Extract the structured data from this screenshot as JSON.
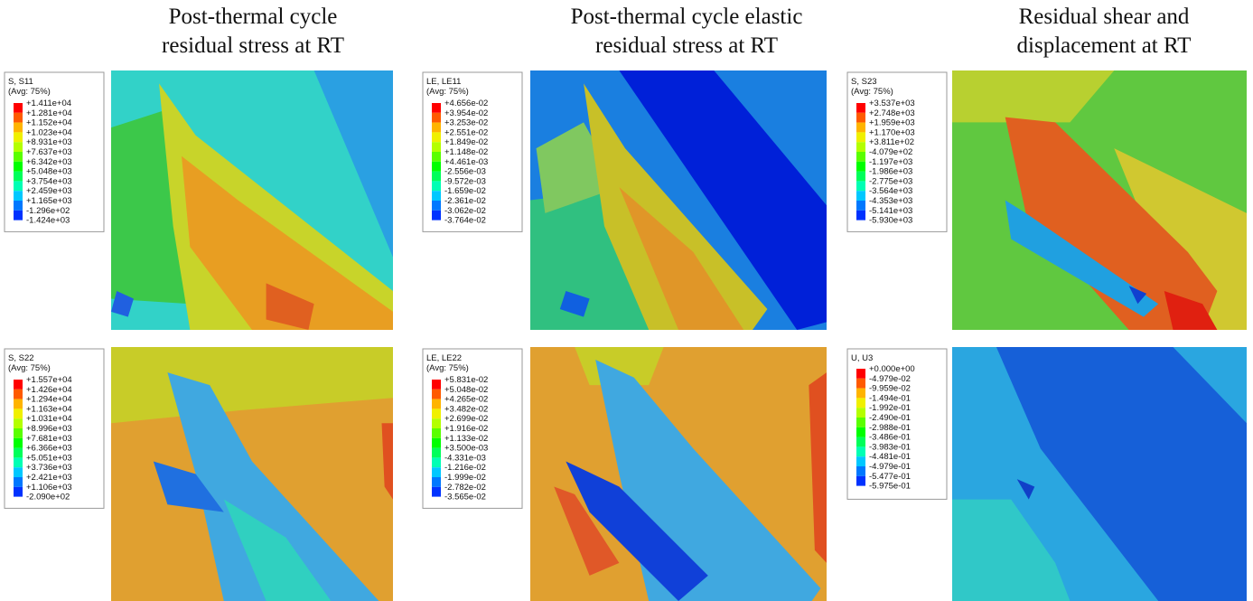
{
  "columns": [
    {
      "title": [
        "Post-thermal cycle",
        "residual stress at RT"
      ]
    },
    {
      "title": [
        "Post-thermal cycle elastic",
        "residual stress at RT"
      ]
    },
    {
      "title": [
        "Residual shear and",
        "displacement at RT"
      ]
    }
  ],
  "panels": [
    {
      "legend_title": "S, S11",
      "averaging": "(Avg: 75%)",
      "levels": [
        "+1.411e+04",
        "+1.281e+04",
        "+1.152e+04",
        "+1.023e+04",
        "+8.931e+03",
        "+7.637e+03",
        "+6.342e+03",
        "+5.048e+03",
        "+3.754e+03",
        "+2.459e+03",
        "+1.165e+03",
        "-1.296e+02",
        "-1.424e+03"
      ]
    },
    {
      "legend_title": "LE, LE11",
      "averaging": "(Avg: 75%)",
      "levels": [
        "+4.656e-02",
        "+3.954e-02",
        "+3.253e-02",
        "+2.551e-02",
        "+1.849e-02",
        "+1.148e-02",
        "+4.461e-03",
        "-2.556e-03",
        "-9.572e-03",
        "-1.659e-02",
        "-2.361e-02",
        "-3.062e-02",
        "-3.764e-02"
      ]
    },
    {
      "legend_title": "S, S23",
      "averaging": "(Avg: 75%)",
      "levels": [
        "+3.537e+03",
        "+2.748e+03",
        "+1.959e+03",
        "+1.170e+03",
        "+3.811e+02",
        "-4.079e+02",
        "-1.197e+03",
        "-1.986e+03",
        "-2.775e+03",
        "-3.564e+03",
        "-4.353e+03",
        "-5.141e+03",
        "-5.930e+03"
      ]
    },
    {
      "legend_title": "S, S22",
      "averaging": "(Avg: 75%)",
      "levels": [
        "+1.557e+04",
        "+1.426e+04",
        "+1.294e+04",
        "+1.163e+04",
        "+1.031e+04",
        "+8.996e+03",
        "+7.681e+03",
        "+6.366e+03",
        "+5.051e+03",
        "+3.736e+03",
        "+2.421e+03",
        "+1.106e+03",
        "-2.090e+02"
      ]
    },
    {
      "legend_title": "LE, LE22",
      "averaging": "(Avg: 75%)",
      "levels": [
        "+5.831e-02",
        "+5.048e-02",
        "+4.265e-02",
        "+3.482e-02",
        "+2.699e-02",
        "+1.916e-02",
        "+1.133e-02",
        "+3.500e-03",
        "-4.331e-03",
        "-1.216e-02",
        "-1.999e-02",
        "-2.782e-02",
        "-3.565e-02"
      ]
    },
    {
      "legend_title": "U, U3",
      "levels": [
        "+0.000e+00",
        "-4.979e-02",
        "-9.959e-02",
        "-1.494e-01",
        "-1.992e-01",
        "-2.490e-01",
        "-2.988e-01",
        "-3.486e-01",
        "-3.983e-01",
        "-4.481e-01",
        "-4.979e-01",
        "-5.477e-01",
        "-5.975e-01"
      ]
    }
  ]
}
